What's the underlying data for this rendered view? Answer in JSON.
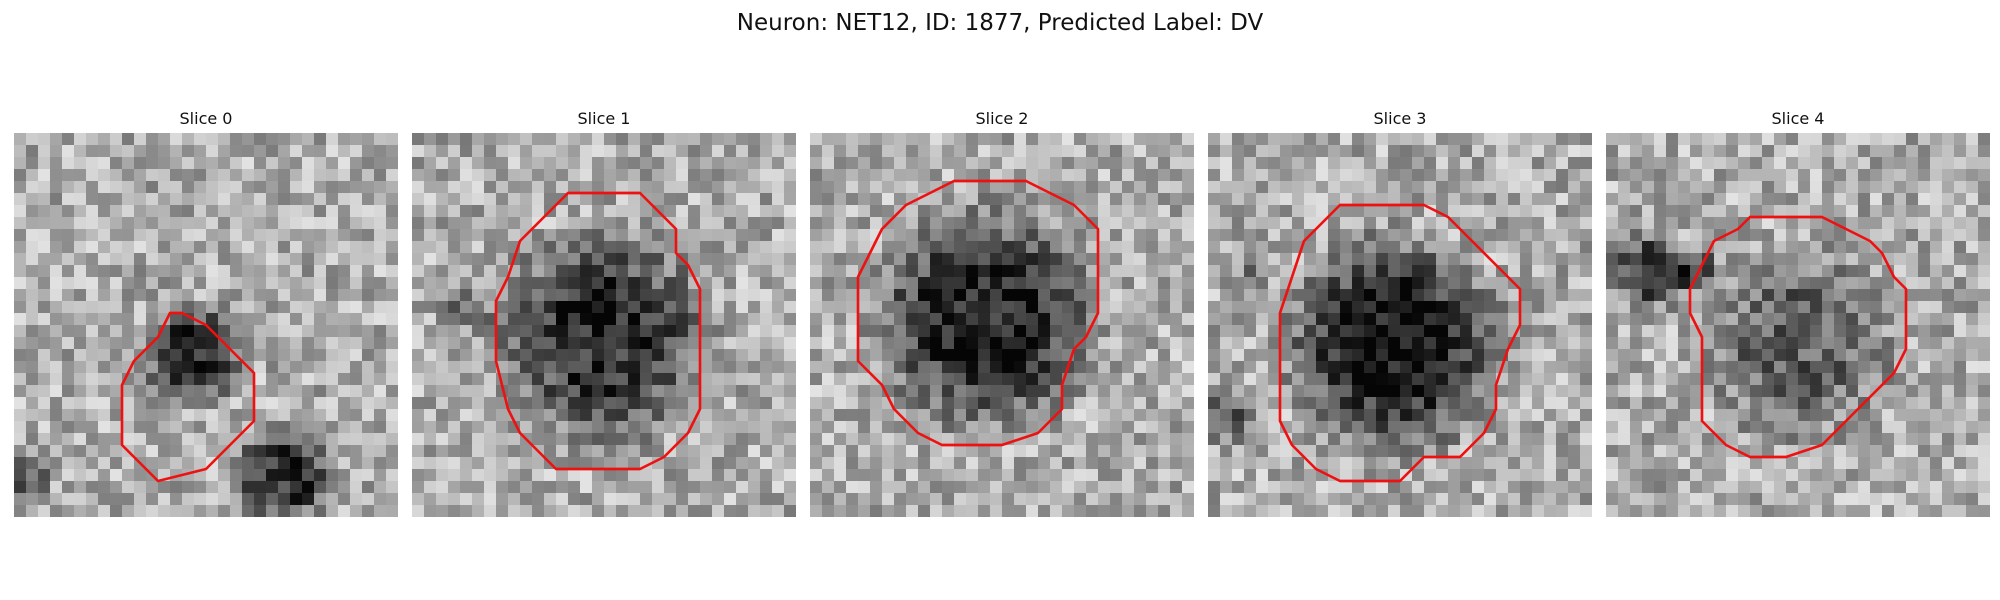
{
  "figure": {
    "title": "Neuron: NET12, ID: 1877, Predicted Label: DV"
  },
  "panels": [
    {
      "title": "Slice 0",
      "outline_points": [
        [
          13,
          15
        ],
        [
          14,
          15
        ],
        [
          16,
          16
        ],
        [
          17,
          17
        ],
        [
          18,
          18
        ],
        [
          19,
          19
        ],
        [
          20,
          20
        ],
        [
          20,
          24
        ],
        [
          18,
          26
        ],
        [
          17,
          27
        ],
        [
          16,
          28
        ],
        [
          12,
          29
        ],
        [
          11,
          28
        ],
        [
          10,
          27
        ],
        [
          9,
          26
        ],
        [
          9,
          24
        ],
        [
          9,
          21
        ],
        [
          10,
          19
        ],
        [
          11,
          18
        ],
        [
          12,
          17
        ]
      ],
      "dark_region": {
        "cx": 14.5,
        "cy": 18,
        "r": 5,
        "strength": 0.55
      },
      "extra_dark": [
        {
          "cx": 22,
          "cy": 28,
          "r": 5,
          "strength": 0.5
        },
        {
          "cx": 0,
          "cy": 28,
          "r": 3,
          "strength": 0.35
        }
      ]
    },
    {
      "title": "Slice 1",
      "outline_points": [
        [
          13,
          5
        ],
        [
          16,
          5
        ],
        [
          19,
          5
        ],
        [
          21,
          7
        ],
        [
          22,
          8
        ],
        [
          22,
          10
        ],
        [
          23,
          11
        ],
        [
          24,
          13
        ],
        [
          24,
          19
        ],
        [
          24,
          23
        ],
        [
          23,
          25
        ],
        [
          21,
          27
        ],
        [
          19,
          28
        ],
        [
          12,
          28
        ],
        [
          11,
          27
        ],
        [
          9,
          25
        ],
        [
          8,
          23
        ],
        [
          7,
          19
        ],
        [
          7,
          14
        ],
        [
          8,
          12
        ],
        [
          9,
          9
        ],
        [
          11,
          7
        ],
        [
          12,
          6
        ]
      ],
      "dark_region": {
        "cx": 15.5,
        "cy": 16.5,
        "r": 10.5,
        "strength": 0.5
      },
      "extra_dark": [
        {
          "cx": 4,
          "cy": 14,
          "r": 3,
          "strength": 0.2
        }
      ]
    },
    {
      "title": "Slice 2",
      "outline_points": [
        [
          12,
          4
        ],
        [
          14,
          4
        ],
        [
          18,
          4
        ],
        [
          20,
          5
        ],
        [
          22,
          6
        ],
        [
          24,
          8
        ],
        [
          24,
          10
        ],
        [
          24,
          13
        ],
        [
          24,
          15
        ],
        [
          23,
          17
        ],
        [
          22,
          18
        ],
        [
          21,
          21
        ],
        [
          21,
          23
        ],
        [
          20,
          24
        ],
        [
          19,
          25
        ],
        [
          16,
          26
        ],
        [
          14,
          26
        ],
        [
          11,
          26
        ],
        [
          9,
          25
        ],
        [
          7,
          23
        ],
        [
          6,
          21
        ],
        [
          4,
          19
        ],
        [
          4,
          16
        ],
        [
          4,
          12
        ],
        [
          5,
          10
        ],
        [
          6,
          8
        ],
        [
          8,
          6
        ],
        [
          10,
          5
        ]
      ],
      "dark_region": {
        "cx": 14,
        "cy": 15,
        "r": 11,
        "strength": 0.55
      },
      "extra_dark": []
    },
    {
      "title": "Slice 3",
      "outline_points": [
        [
          11,
          6
        ],
        [
          14,
          6
        ],
        [
          18,
          6
        ],
        [
          20,
          7
        ],
        [
          22,
          9
        ],
        [
          24,
          11
        ],
        [
          26,
          13
        ],
        [
          26,
          16
        ],
        [
          25,
          18
        ],
        [
          24,
          21
        ],
        [
          24,
          23
        ],
        [
          23,
          25
        ],
        [
          22,
          26
        ],
        [
          21,
          27
        ],
        [
          18,
          27
        ],
        [
          16,
          29
        ],
        [
          11,
          29
        ],
        [
          9,
          28
        ],
        [
          7,
          26
        ],
        [
          6,
          24
        ],
        [
          6,
          19
        ],
        [
          6,
          15
        ],
        [
          7,
          12
        ],
        [
          8,
          9
        ],
        [
          10,
          7
        ]
      ],
      "dark_region": {
        "cx": 15,
        "cy": 17,
        "r": 10.5,
        "strength": 0.6
      },
      "extra_dark": [
        {
          "cx": 1,
          "cy": 23,
          "r": 3,
          "strength": 0.3
        },
        {
          "cx": 3,
          "cy": 12,
          "r": 2,
          "strength": 0.2
        }
      ]
    },
    {
      "title": "Slice 4",
      "outline_points": [
        [
          12,
          7
        ],
        [
          14,
          7
        ],
        [
          18,
          7
        ],
        [
          20,
          8
        ],
        [
          22,
          9
        ],
        [
          23,
          10
        ],
        [
          24,
          12
        ],
        [
          25,
          13
        ],
        [
          25,
          16
        ],
        [
          25,
          18
        ],
        [
          24,
          20
        ],
        [
          22,
          22
        ],
        [
          20,
          24
        ],
        [
          18,
          26
        ],
        [
          15,
          27
        ],
        [
          12,
          27
        ],
        [
          10,
          26
        ],
        [
          9,
          25
        ],
        [
          8,
          24
        ],
        [
          8,
          20
        ],
        [
          8,
          17
        ],
        [
          7,
          15
        ],
        [
          7,
          13
        ],
        [
          8,
          11
        ],
        [
          9,
          9
        ],
        [
          11,
          8
        ]
      ],
      "dark_region": {
        "cx": 15.5,
        "cy": 17,
        "r": 9.5,
        "strength": 0.3
      },
      "extra_dark": [
        {
          "cx": 3,
          "cy": 11,
          "r": 4,
          "strength": 0.45
        },
        {
          "cx": 7,
          "cy": 11,
          "r": 2.5,
          "strength": 0.35
        }
      ]
    }
  ],
  "colors": {
    "outline": "#ee1111",
    "background": "#ffffff"
  }
}
